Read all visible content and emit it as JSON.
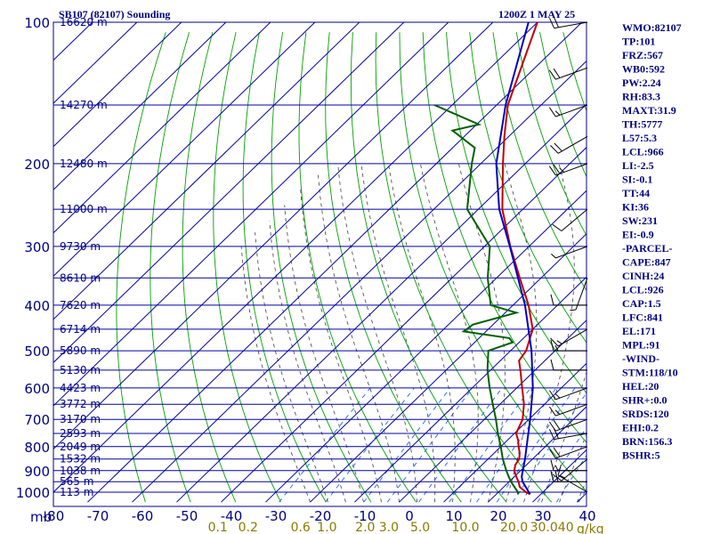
{
  "header": {
    "station_title": "SB107 (82107) Sounding",
    "time_title": "1200Z  1 MAY 25"
  },
  "axes": {
    "pressure_unit_label": "mb",
    "wmix_unit_label": "g/kg",
    "colors": {
      "isobar": "#0000a0",
      "isotherm": "#0000a0",
      "dry_adiabat": "#00a000",
      "moist_adiabat": "#404040",
      "mixing_ratio": "#3070ff",
      "wind_barb": "#000000"
    }
  },
  "chart_data": {
    "type": "line",
    "title": "SB107 (82107) Sounding",
    "subtitle": "1200Z  1 MAY 25",
    "pressure_levels_mb": [
      100,
      200,
      300,
      400,
      500,
      600,
      700,
      800,
      900,
      1000
    ],
    "height_labels": [
      {
        "p": 100,
        "label": "16620 m"
      },
      {
        "p": 150,
        "label": "14270 m"
      },
      {
        "p": 200,
        "label": "12480 m"
      },
      {
        "p": 250,
        "label": "11000 m"
      },
      {
        "p": 300,
        "label": "9730 m"
      },
      {
        "p": 350,
        "label": "8610 m"
      },
      {
        "p": 400,
        "label": "7620 m"
      },
      {
        "p": 450,
        "label": "6714 m"
      },
      {
        "p": 500,
        "label": "5890 m"
      },
      {
        "p": 550,
        "label": "5130 m"
      },
      {
        "p": 600,
        "label": "4423 m"
      },
      {
        "p": 650,
        "label": "3772 m"
      },
      {
        "p": 700,
        "label": "3170 m"
      },
      {
        "p": 750,
        "label": "2593 m"
      },
      {
        "p": 800,
        "label": "2049 m"
      },
      {
        "p": 850,
        "label": "1532 m"
      },
      {
        "p": 900,
        "label": "1038 m"
      },
      {
        "p": 950,
        "label": "565 m"
      },
      {
        "p": 1000,
        "label": "113 m"
      }
    ],
    "temperature_ticks": [
      -80,
      -70,
      -60,
      -50,
      -40,
      -30,
      -20,
      -10,
      0,
      10,
      20,
      30,
      40
    ],
    "temperature_tick_labels": [
      "-80",
      "-70",
      "-60",
      "-50",
      "-40",
      "-30",
      "-20",
      "-10",
      "0",
      "10",
      "20",
      "30",
      "40"
    ],
    "mixing_ratio_labels": [
      "0.1",
      "0.2",
      "0.6",
      "1.0",
      "2.0",
      "3.0",
      "5.0",
      "10.0",
      "20.0",
      "30.0",
      "40"
    ],
    "xlim_celsius": [
      -80,
      40
    ],
    "ylim_mb": [
      100,
      1050
    ],
    "y_scale": "log",
    "skew": "isotherms slanted right",
    "series": [
      {
        "role": "temperature",
        "color": "#c00000",
        "points": [
          {
            "p": 1010,
            "t": 27.6
          },
          {
            "p": 1000,
            "t": 26.2
          },
          {
            "p": 975,
            "t": 23.6
          },
          {
            "p": 950,
            "t": 22.1
          },
          {
            "p": 925,
            "t": 20.3
          },
          {
            "p": 900,
            "t": 18.6
          },
          {
            "p": 875,
            "t": 17.5
          },
          {
            "p": 850,
            "t": 17.0
          },
          {
            "p": 825,
            "t": 15.7
          },
          {
            "p": 800,
            "t": 14.0
          },
          {
            "p": 775,
            "t": 12.4
          },
          {
            "p": 750,
            "t": 10.4
          },
          {
            "p": 700,
            "t": 8.6
          },
          {
            "p": 650,
            "t": 5.4
          },
          {
            "p": 600,
            "t": 1.2
          },
          {
            "p": 550,
            "t": -3.3
          },
          {
            "p": 525,
            "t": -5.8
          },
          {
            "p": 500,
            "t": -6.5
          },
          {
            "p": 450,
            "t": -10.0
          },
          {
            "p": 400,
            "t": -16.5
          },
          {
            "p": 350,
            "t": -24.8
          },
          {
            "p": 300,
            "t": -34.2
          },
          {
            "p": 250,
            "t": -44.6
          },
          {
            "p": 200,
            "t": -55.0
          },
          {
            "p": 175,
            "t": -61.0
          },
          {
            "p": 150,
            "t": -67.5
          },
          {
            "p": 100,
            "t": -80.0
          }
        ]
      },
      {
        "role": "dewpoint",
        "color": "#006000",
        "points": [
          {
            "p": 1010,
            "t": 24.9
          },
          {
            "p": 1000,
            "t": 24.4
          },
          {
            "p": 975,
            "t": 22.4
          },
          {
            "p": 950,
            "t": 20.4
          },
          {
            "p": 925,
            "t": 18.6
          },
          {
            "p": 900,
            "t": 16.8
          },
          {
            "p": 850,
            "t": 13.3
          },
          {
            "p": 800,
            "t": 10.0
          },
          {
            "p": 750,
            "t": 6.3
          },
          {
            "p": 700,
            "t": 2.6
          },
          {
            "p": 650,
            "t": -1.6
          },
          {
            "p": 600,
            "t": -6.1
          },
          {
            "p": 550,
            "t": -10.7
          },
          {
            "p": 500,
            "t": -15.0
          },
          {
            "p": 480,
            "t": -11.5
          },
          {
            "p": 470,
            "t": -13.2
          },
          {
            "p": 455,
            "t": -25.0
          },
          {
            "p": 440,
            "t": -24.5
          },
          {
            "p": 415,
            "t": -17.5
          },
          {
            "p": 400,
            "t": -25.0
          },
          {
            "p": 350,
            "t": -32.0
          },
          {
            "p": 300,
            "t": -38.8
          },
          {
            "p": 250,
            "t": -52.5
          },
          {
            "p": 200,
            "t": -62.0
          },
          {
            "p": 185,
            "t": -65.0
          },
          {
            "p": 170,
            "t": -74.0
          },
          {
            "p": 165,
            "t": -69.5
          },
          {
            "p": 150,
            "t": -84.0
          }
        ]
      },
      {
        "role": "parcel",
        "color": "#0000c0",
        "points": [
          {
            "p": 1010,
            "t": 27.6
          },
          {
            "p": 950,
            "t": 23.0
          },
          {
            "p": 926,
            "t": 21.6
          },
          {
            "p": 850,
            "t": 18.3
          },
          {
            "p": 800,
            "t": 15.8
          },
          {
            "p": 700,
            "t": 10.3
          },
          {
            "p": 600,
            "t": 3.6
          },
          {
            "p": 500,
            "t": -5.3
          },
          {
            "p": 400,
            "t": -17.3
          },
          {
            "p": 300,
            "t": -34.3
          },
          {
            "p": 250,
            "t": -45.3
          },
          {
            "p": 200,
            "t": -56.5
          },
          {
            "p": 150,
            "t": -68.0
          },
          {
            "p": 100,
            "t": -82.0
          }
        ]
      }
    ],
    "wind_barbs": [
      {
        "p": 100,
        "dir": 260,
        "kt": 20
      },
      {
        "p": 125,
        "dir": 250,
        "kt": 20
      },
      {
        "p": 150,
        "dir": 250,
        "kt": 15
      },
      {
        "p": 175,
        "dir": 240,
        "kt": 20
      },
      {
        "p": 200,
        "dir": 250,
        "kt": 25
      },
      {
        "p": 250,
        "dir": 230,
        "kt": 10
      },
      {
        "p": 300,
        "dir": 250,
        "kt": 5
      },
      {
        "p": 350,
        "dir": 200,
        "kt": 5
      },
      {
        "p": 400,
        "dir": 270,
        "kt": 10
      },
      {
        "p": 450,
        "dir": 240,
        "kt": 15
      },
      {
        "p": 500,
        "dir": 270,
        "kt": 15
      },
      {
        "p": 550,
        "dir": 270,
        "kt": 10
      },
      {
        "p": 600,
        "dir": 250,
        "kt": 15
      },
      {
        "p": 650,
        "dir": 250,
        "kt": 15
      },
      {
        "p": 700,
        "dir": 250,
        "kt": 20
      },
      {
        "p": 750,
        "dir": 260,
        "kt": 20
      },
      {
        "p": 800,
        "dir": 250,
        "kt": 20
      },
      {
        "p": 850,
        "dir": 230,
        "kt": 15
      },
      {
        "p": 900,
        "dir": 270,
        "kt": 15
      },
      {
        "p": 950,
        "dir": 270,
        "kt": 20
      },
      {
        "p": 1000,
        "dir": 300,
        "kt": 10
      }
    ]
  },
  "indices": [
    "WMO:82107",
    "TP:101",
    "FRZ:567",
    "WB0:592",
    "PW:2.24",
    "RH:83.3",
    "MAXT:31.9",
    "TH:5777",
    "L57:5.3",
    "LCL:966",
    "LI:-2.5",
    "SI:-0.1",
    "TT:44",
    "KI:36",
    "SW:231",
    "EI:-0.9",
    "-PARCEL-",
    "CAPE:847",
    "CINH:24",
    "LCL:926",
    "CAP:1.5",
    "LFC:841",
    "EL:171",
    "MPL:91",
    "-WIND-",
    "STM:118/10",
    "HEL:20",
    "SHR+:0.0",
    "SRDS:120",
    "EHI:0.2",
    "BRN:156.3",
    "BSHR:5"
  ]
}
